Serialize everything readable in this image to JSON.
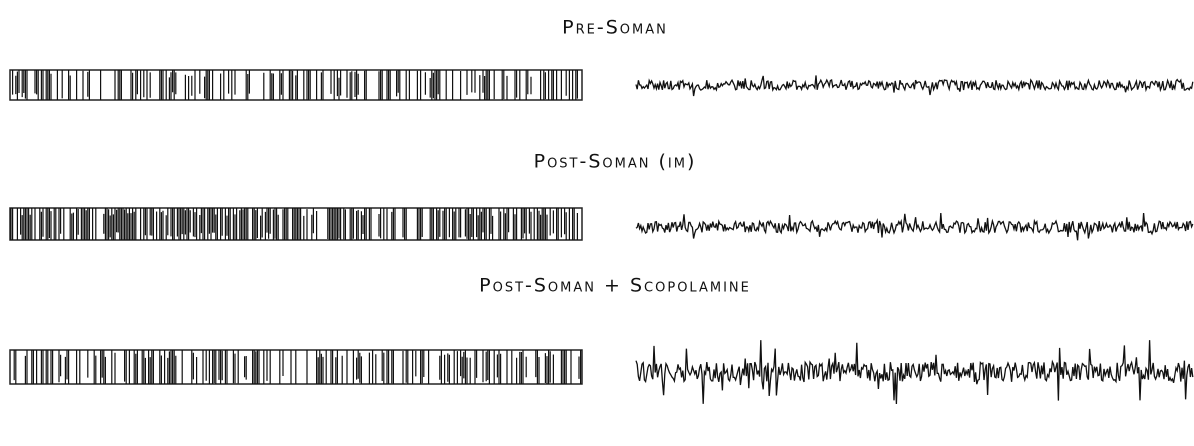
{
  "panels": [
    {
      "label": "Pre-Soman"
    },
    {
      "label": "Post-Soman (im)"
    },
    {
      "label": "Post-Soman + Scopolamine"
    }
  ]
}
